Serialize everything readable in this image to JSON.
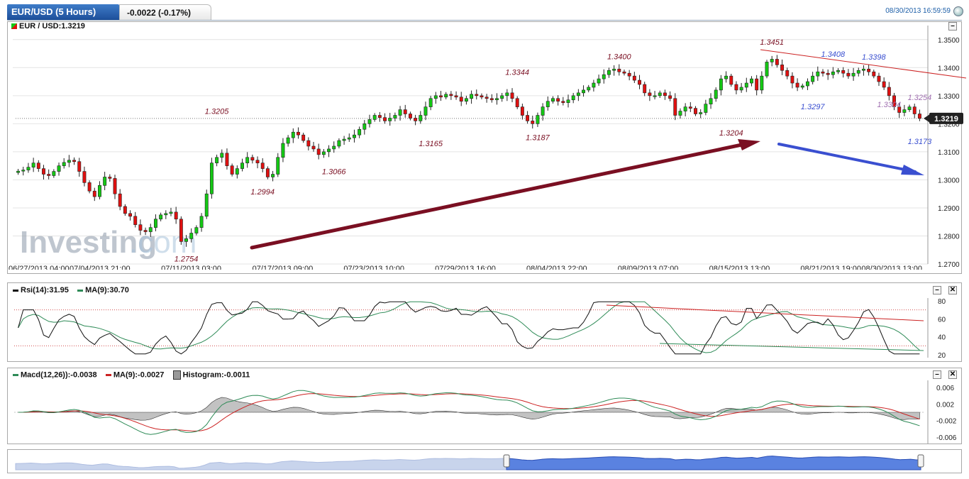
{
  "header": {
    "tab_title": "EUR/USD (5 Hours)",
    "change": "-0.0022 (-0.17%)",
    "timestamp": "08/30/2013 16:59:59"
  },
  "main_panel": {
    "title": "EUR / USD:1.3219",
    "current_price_label": "1.3219",
    "watermark": "Investing",
    "watermark_suffix": ".com"
  },
  "rsi_panel": {
    "label1": "Rsi(14):31.95",
    "label2": "MA(9):30.70"
  },
  "macd_panel": {
    "label1": "Macd(12,26)):-0.0038",
    "label2": "MA(9):-0.0027",
    "label3": "Histogram:-0.0011"
  },
  "colors": {
    "up": "#14c814",
    "down": "#e01010",
    "rsi_line": "#111111",
    "ma_line": "#2e8b57",
    "trend_red": "#cc2222",
    "arrow_up": "#7a0f22",
    "arrow_down": "#3a4fd0",
    "nav_fill": "#5a82e0"
  },
  "chart_data": {
    "type": "candlestick",
    "instrument": "EUR/USD",
    "interval": "5 Hours",
    "ylim": [
      1.27,
      1.355
    ],
    "y_ticks": [
      "1.2700",
      "1.2800",
      "1.2900",
      "1.3000",
      "1.3100",
      "1.3200",
      "1.3300",
      "1.3400",
      "1.3500"
    ],
    "x_ticks": [
      "06/27/2013 04:00",
      "07/04/2013 21:00",
      "07/11/2013 03:00",
      "07/17/2013 09:00",
      "07/23/2013 10:00",
      "07/29/2013 16:00",
      "08/04/2013 22:00",
      "08/09/2013 07:00",
      "08/15/2013 13:00",
      "08/21/2013 19:00",
      "08/30/2013 13:00"
    ],
    "closes": [
      1.3031,
      1.3035,
      1.3045,
      1.306,
      1.304,
      1.302,
      1.3015,
      1.303,
      1.305,
      1.3062,
      1.307,
      1.3065,
      1.303,
      1.299,
      1.296,
      1.294,
      1.298,
      1.301,
      1.3005,
      1.295,
      1.2905,
      1.288,
      1.287,
      1.284,
      1.282,
      1.2815,
      1.283,
      1.286,
      1.2875,
      1.288,
      1.2885,
      1.286,
      1.278,
      1.279,
      1.281,
      1.283,
      1.287,
      1.295,
      1.306,
      1.308,
      1.3095,
      1.305,
      1.302,
      1.304,
      1.306,
      1.308,
      1.307,
      1.306,
      1.304,
      1.301,
      1.302,
      1.308,
      1.313,
      1.315,
      1.317,
      1.316,
      1.314,
      1.312,
      1.311,
      1.309,
      1.31,
      1.311,
      1.312,
      1.314,
      1.3145,
      1.315,
      1.316,
      1.318,
      1.32,
      1.3215,
      1.323,
      1.3222,
      1.321,
      1.322,
      1.323,
      1.325,
      1.3235,
      1.322,
      1.321,
      1.323,
      1.326,
      1.329,
      1.33,
      1.3295,
      1.3305,
      1.33,
      1.3295,
      1.328,
      1.329,
      1.3305,
      1.33,
      1.3295,
      1.329,
      1.3285,
      1.329,
      1.33,
      1.331,
      1.329,
      1.326,
      1.323,
      1.321,
      1.32,
      1.323,
      1.326,
      1.328,
      1.329,
      1.328,
      1.3275,
      1.3285,
      1.33,
      1.331,
      1.332,
      1.333,
      1.3345,
      1.336,
      1.3375,
      1.339,
      1.3395,
      1.3385,
      1.338,
      1.337,
      1.3355,
      1.334,
      1.331,
      1.33,
      1.33,
      1.331,
      1.33,
      1.329,
      1.323,
      1.3245,
      1.326,
      1.3255,
      1.3235,
      1.324,
      1.327,
      1.329,
      1.332,
      1.336,
      1.337,
      1.334,
      1.332,
      1.333,
      1.3345,
      1.336,
      1.332,
      1.337,
      1.342,
      1.343,
      1.341,
      1.339,
      1.337,
      1.3345,
      1.333,
      1.3335,
      1.335,
      1.337,
      1.3385,
      1.338,
      1.3375,
      1.3385,
      1.339,
      1.338,
      1.337,
      1.338,
      1.339,
      1.3395,
      1.3385,
      1.337,
      1.335,
      1.333,
      1.33,
      1.326,
      1.324,
      1.325,
      1.326,
      1.3235,
      1.3219
    ],
    "annotations": [
      {
        "label": "1.2754",
        "x_index": 33,
        "pos": "below",
        "color": "#7a0f22"
      },
      {
        "label": "1.3205",
        "x_index": 39,
        "pos": "above",
        "color": "#7a0f22"
      },
      {
        "label": "1.2994",
        "x_index": 48,
        "pos": "below",
        "color": "#7a0f22"
      },
      {
        "label": "1.3066",
        "x_index": 62,
        "pos": "below",
        "color": "#7a0f22"
      },
      {
        "label": "1.3165",
        "x_index": 81,
        "pos": "below",
        "color": "#7a0f22"
      },
      {
        "label": "1.3344",
        "x_index": 98,
        "pos": "above",
        "color": "#7a0f22"
      },
      {
        "label": "1.3187",
        "x_index": 102,
        "pos": "below",
        "color": "#7a0f22"
      },
      {
        "label": "1.3400",
        "x_index": 118,
        "pos": "above",
        "color": "#7a0f22"
      },
      {
        "label": "1.3204",
        "x_index": 140,
        "pos": "below",
        "color": "#7a0f22"
      },
      {
        "label": "1.3451",
        "x_index": 148,
        "pos": "above",
        "color": "#7a0f22"
      },
      {
        "label": "1.3408",
        "x_index": 160,
        "pos": "above",
        "color": "#3a4fd0"
      },
      {
        "label": "1.3297",
        "x_index": 156,
        "pos": "below",
        "color": "#3a4fd0"
      },
      {
        "label": "1.3398",
        "x_index": 168,
        "pos": "above",
        "color": "#3a4fd0"
      },
      {
        "label": "1.3304",
        "x_index": 171,
        "pos": "below",
        "color": "#a070b0"
      },
      {
        "label": "1.3254",
        "x_index": 177,
        "pos": "above",
        "color": "#a070b0"
      },
      {
        "label": "1.3173",
        "x_index": 177,
        "pos": "below",
        "color": "#3a4fd0"
      }
    ],
    "rsi": {
      "ylim": [
        20,
        80
      ],
      "y_ticks": [
        "20",
        "40",
        "60",
        "80"
      ],
      "levels": [
        30,
        70
      ],
      "rsi_value": 31.95,
      "ma_value": 30.7
    },
    "macd": {
      "ylim": [
        -0.007,
        0.007
      ],
      "y_ticks": [
        "0.006",
        "0.002",
        "-0.002",
        "-0.006"
      ],
      "macd_value": -0.0038,
      "signal_value": -0.0027,
      "histogram_value": -0.0011
    }
  }
}
